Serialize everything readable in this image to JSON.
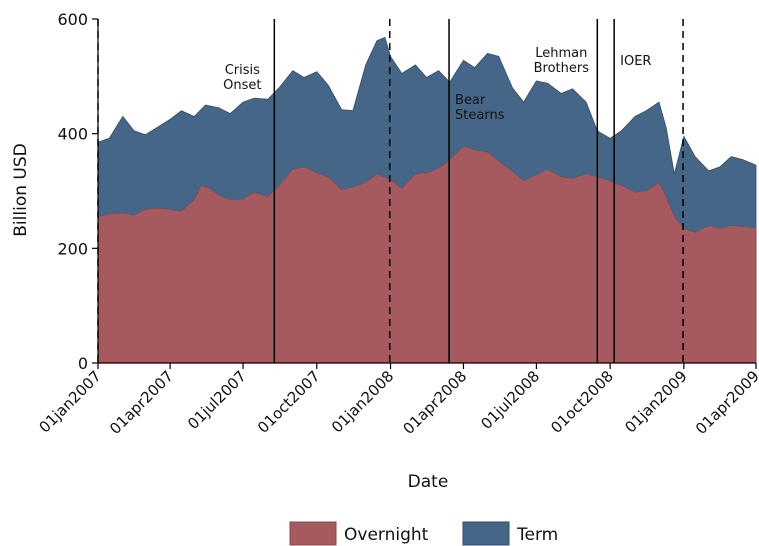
{
  "chart_data": {
    "type": "area",
    "stacked": true,
    "title": "",
    "xlabel": "Date",
    "ylabel": "Billion USD",
    "ylim": [
      0,
      600
    ],
    "xlim": [
      "2007-01-01",
      "2009-04-01"
    ],
    "yticks": [
      0,
      200,
      400,
      600
    ],
    "xticks": [
      {
        "date": "2007-01-01",
        "label": "01jan2007"
      },
      {
        "date": "2007-04-01",
        "label": "01apr2007"
      },
      {
        "date": "2007-07-01",
        "label": "01jul2007"
      },
      {
        "date": "2007-10-01",
        "label": "01oct2007"
      },
      {
        "date": "2008-01-01",
        "label": "01jan2008"
      },
      {
        "date": "2008-04-01",
        "label": "01apr2008"
      },
      {
        "date": "2008-07-01",
        "label": "01jul2008"
      },
      {
        "date": "2008-10-01",
        "label": "01oct2008"
      },
      {
        "date": "2009-01-01",
        "label": "01jan2009"
      },
      {
        "date": "2009-04-01",
        "label": "01apr2009"
      }
    ],
    "legend_position": "bottom",
    "grid": false,
    "series": [
      {
        "name": "Overnight",
        "color": "#a65a5f",
        "points": [
          [
            "2007-01-01",
            255
          ],
          [
            "2007-01-15",
            260
          ],
          [
            "2007-02-01",
            262
          ],
          [
            "2007-02-15",
            258
          ],
          [
            "2007-03-01",
            268
          ],
          [
            "2007-03-15",
            270
          ],
          [
            "2007-04-01",
            268
          ],
          [
            "2007-04-15",
            265
          ],
          [
            "2007-05-01",
            285
          ],
          [
            "2007-05-10",
            310
          ],
          [
            "2007-05-20",
            305
          ],
          [
            "2007-06-01",
            293
          ],
          [
            "2007-06-15",
            285
          ],
          [
            "2007-07-01",
            286
          ],
          [
            "2007-07-15",
            298
          ],
          [
            "2007-08-01",
            290
          ],
          [
            "2007-08-15",
            310
          ],
          [
            "2007-09-01",
            338
          ],
          [
            "2007-09-15",
            342
          ],
          [
            "2007-10-01",
            332
          ],
          [
            "2007-10-15",
            325
          ],
          [
            "2007-11-01",
            303
          ],
          [
            "2007-11-15",
            307
          ],
          [
            "2007-12-01",
            315
          ],
          [
            "2007-12-15",
            330
          ],
          [
            "2008-01-01",
            320
          ],
          [
            "2008-01-15",
            305
          ],
          [
            "2008-02-01",
            330
          ],
          [
            "2008-02-15",
            332
          ],
          [
            "2008-03-01",
            340
          ],
          [
            "2008-03-15",
            355
          ],
          [
            "2008-04-01",
            378
          ],
          [
            "2008-04-15",
            372
          ],
          [
            "2008-05-01",
            368
          ],
          [
            "2008-05-15",
            352
          ],
          [
            "2008-06-01",
            335
          ],
          [
            "2008-06-15",
            318
          ],
          [
            "2008-07-01",
            328
          ],
          [
            "2008-07-15",
            338
          ],
          [
            "2008-08-01",
            325
          ],
          [
            "2008-08-15",
            322
          ],
          [
            "2008-09-01",
            330
          ],
          [
            "2008-09-15",
            325
          ],
          [
            "2008-10-01",
            318
          ],
          [
            "2008-10-15",
            310
          ],
          [
            "2008-11-01",
            298
          ],
          [
            "2008-11-15",
            300
          ],
          [
            "2008-12-01",
            315
          ],
          [
            "2008-12-10",
            290
          ],
          [
            "2008-12-20",
            255
          ],
          [
            "2009-01-01",
            235
          ],
          [
            "2009-01-15",
            228
          ],
          [
            "2009-02-01",
            240
          ],
          [
            "2009-02-15",
            235
          ],
          [
            "2009-03-01",
            240
          ],
          [
            "2009-03-15",
            238
          ],
          [
            "2009-04-01",
            236
          ]
        ]
      },
      {
        "name": "Term",
        "color": "#466688",
        "points": [
          [
            "2007-01-01",
            385
          ],
          [
            "2007-01-15",
            392
          ],
          [
            "2007-02-01",
            430
          ],
          [
            "2007-02-15",
            405
          ],
          [
            "2007-03-01",
            398
          ],
          [
            "2007-03-15",
            410
          ],
          [
            "2007-04-01",
            425
          ],
          [
            "2007-04-15",
            440
          ],
          [
            "2007-05-01",
            430
          ],
          [
            "2007-05-15",
            450
          ],
          [
            "2007-06-01",
            445
          ],
          [
            "2007-06-15",
            435
          ],
          [
            "2007-07-01",
            455
          ],
          [
            "2007-07-15",
            462
          ],
          [
            "2007-08-01",
            460
          ],
          [
            "2007-08-15",
            480
          ],
          [
            "2007-09-01",
            510
          ],
          [
            "2007-09-15",
            498
          ],
          [
            "2007-10-01",
            508
          ],
          [
            "2007-10-15",
            485
          ],
          [
            "2007-11-01",
            442
          ],
          [
            "2007-11-15",
            440
          ],
          [
            "2007-12-01",
            520
          ],
          [
            "2007-12-15",
            562
          ],
          [
            "2007-12-25",
            568
          ],
          [
            "2008-01-01",
            535
          ],
          [
            "2008-01-15",
            505
          ],
          [
            "2008-02-01",
            520
          ],
          [
            "2008-02-15",
            498
          ],
          [
            "2008-03-01",
            510
          ],
          [
            "2008-03-15",
            490
          ],
          [
            "2008-04-01",
            528
          ],
          [
            "2008-04-15",
            515
          ],
          [
            "2008-05-01",
            540
          ],
          [
            "2008-05-15",
            535
          ],
          [
            "2008-06-01",
            480
          ],
          [
            "2008-06-15",
            455
          ],
          [
            "2008-07-01",
            492
          ],
          [
            "2008-07-15",
            488
          ],
          [
            "2008-08-01",
            470
          ],
          [
            "2008-08-15",
            478
          ],
          [
            "2008-09-01",
            455
          ],
          [
            "2008-09-15",
            405
          ],
          [
            "2008-10-01",
            392
          ],
          [
            "2008-10-15",
            405
          ],
          [
            "2008-11-01",
            430
          ],
          [
            "2008-11-15",
            440
          ],
          [
            "2008-12-01",
            455
          ],
          [
            "2008-12-10",
            410
          ],
          [
            "2008-12-20",
            330
          ],
          [
            "2009-01-01",
            395
          ],
          [
            "2009-01-15",
            360
          ],
          [
            "2009-02-01",
            335
          ],
          [
            "2009-02-15",
            342
          ],
          [
            "2009-03-01",
            360
          ],
          [
            "2009-03-15",
            355
          ],
          [
            "2009-04-01",
            345
          ]
        ]
      }
    ],
    "events": [
      {
        "date": "2007-01-01",
        "style": "dashed",
        "label": ""
      },
      {
        "date": "2007-08-09",
        "style": "solid",
        "label": "Crisis\nOnset"
      },
      {
        "date": "2007-12-31",
        "style": "dashed",
        "label": ""
      },
      {
        "date": "2008-03-14",
        "style": "solid",
        "label": "Bear\nStearns"
      },
      {
        "date": "2008-09-15",
        "style": "solid",
        "label": "Lehman\nBrothers"
      },
      {
        "date": "2008-10-06",
        "style": "solid",
        "label": "IOER"
      },
      {
        "date": "2008-12-31",
        "style": "dashed",
        "label": ""
      }
    ]
  }
}
